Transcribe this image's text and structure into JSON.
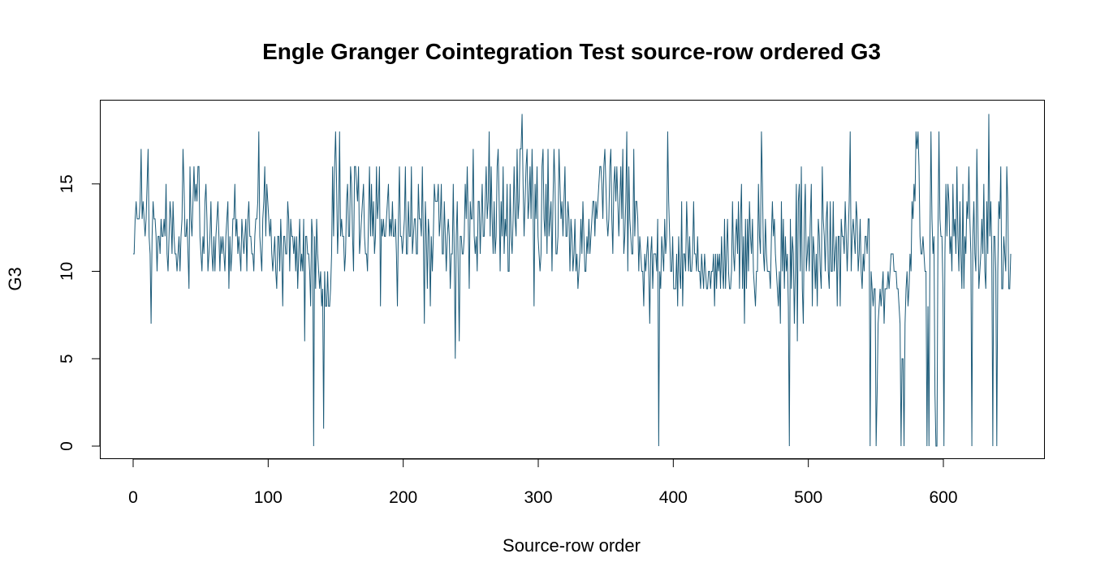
{
  "chart_data": {
    "type": "line",
    "title": "Engle Granger Cointegration Test source-row ordered G3",
    "xlabel": "Source-row order",
    "ylabel": "G3",
    "xlim": [
      0,
      650
    ],
    "ylim": [
      0,
      19
    ],
    "x_ticks": [
      0,
      100,
      200,
      300,
      400,
      500,
      600
    ],
    "y_ticks": [
      0,
      5,
      10,
      15
    ],
    "grid": false,
    "legend": "none",
    "line_color": "#1b5a78",
    "series": [
      {
        "y": [
          11,
          11,
          13,
          14,
          13,
          13,
          13,
          14,
          17,
          13,
          14,
          13,
          12,
          13,
          15,
          17,
          12,
          11,
          7,
          12,
          14,
          13,
          13,
          12,
          10,
          12,
          12,
          11,
          13,
          12,
          12,
          13,
          12,
          15,
          11,
          10,
          12,
          14,
          13,
          11,
          14,
          12,
          11,
          11,
          10,
          11,
          12,
          10,
          12,
          13,
          17,
          15,
          12,
          12,
          13,
          11,
          9,
          16,
          13,
          12,
          14,
          16,
          14,
          15,
          14,
          16,
          16,
          12,
          11,
          10,
          12,
          11,
          14,
          15,
          13,
          10,
          11,
          12,
          14,
          11,
          10,
          12,
          10,
          12,
          13,
          14,
          12,
          10,
          12,
          11,
          12,
          11,
          10,
          12,
          13,
          14,
          9,
          12,
          10,
          11,
          13,
          13,
          15,
          12,
          13,
          11,
          12,
          11,
          10,
          13,
          12,
          11,
          12,
          13,
          10,
          13,
          14,
          12,
          12,
          11,
          11,
          10,
          12,
          13,
          13,
          14,
          18,
          12,
          11,
          10,
          13,
          14,
          16,
          12,
          15,
          14,
          13,
          12,
          13,
          11,
          10,
          11,
          12,
          10,
          9,
          12,
          12,
          10,
          13,
          11,
          8,
          12,
          12,
          11,
          11,
          14,
          13,
          10,
          13,
          12,
          12,
          11,
          12,
          10,
          12,
          9,
          11,
          13,
          10,
          11,
          10,
          13,
          6,
          12,
          12,
          11,
          11,
          10,
          8,
          13,
          12,
          0,
          12,
          9,
          13,
          11,
          10,
          9,
          10,
          8,
          9,
          1,
          10,
          8,
          8,
          10,
          8,
          8,
          9,
          11,
          16,
          12,
          16,
          18,
          15,
          11,
          13,
          18,
          12,
          13,
          12,
          12,
          10,
          11,
          14,
          15,
          12,
          12,
          16,
          15,
          12,
          10,
          16,
          16,
          15,
          14,
          16,
          11,
          12,
          13,
          14,
          15,
          12,
          11,
          11,
          10,
          13,
          16,
          12,
          15,
          12,
          14,
          11,
          12,
          16,
          13,
          14,
          16,
          8,
          13,
          12,
          13,
          12,
          12,
          13,
          14,
          15,
          12,
          13,
          12,
          14,
          12,
          12,
          13,
          11,
          8,
          13,
          16,
          12,
          12,
          11,
          12,
          13,
          16,
          11,
          11,
          14,
          12,
          12,
          16,
          11,
          12,
          13,
          13,
          11,
          11,
          15,
          13,
          13,
          12,
          16,
          12,
          7,
          14,
          12,
          9,
          13,
          12,
          8,
          12,
          10,
          12,
          15,
          14,
          14,
          14,
          15,
          12,
          13,
          15,
          11,
          11,
          14,
          12,
          10,
          12,
          13,
          12,
          9,
          11,
          11,
          15,
          11,
          5,
          12,
          14,
          10,
          6,
          12,
          12,
          11,
          11,
          12,
          15,
          13,
          16,
          13,
          9,
          14,
          13,
          13,
          17,
          12,
          11,
          12,
          10,
          14,
          14,
          11,
          13,
          15,
          12,
          12,
          14,
          16,
          13,
          14,
          18,
          12,
          16,
          13,
          11,
          14,
          11,
          12,
          16,
          17,
          14,
          10,
          14,
          12,
          16,
          11,
          13,
          12,
          15,
          10,
          10,
          15,
          12,
          11,
          13,
          16,
          13,
          12,
          17,
          13,
          14,
          17,
          17,
          19,
          15,
          12,
          14,
          16,
          17,
          13,
          14,
          16,
          13,
          17,
          14,
          8,
          15,
          13,
          16,
          12,
          11,
          10,
          11,
          16,
          17,
          13,
          12,
          15,
          11,
          17,
          12,
          13,
          14,
          10,
          14,
          17,
          15,
          11,
          11,
          12,
          17,
          15,
          13,
          14,
          12,
          14,
          16,
          12,
          12,
          14,
          13,
          10,
          13,
          12,
          10,
          11,
          13,
          10,
          11,
          9,
          10,
          11,
          13,
          11,
          14,
          12,
          10,
          10,
          12,
          11,
          13,
          11,
          12,
          13,
          14,
          14,
          12,
          14,
          13,
          14,
          15,
          16,
          16,
          15,
          13,
          16,
          17,
          15,
          13,
          12,
          13,
          16,
          17,
          13,
          11,
          15,
          16,
          14,
          16,
          14,
          12,
          14,
          16,
          13,
          17,
          11,
          12,
          14,
          18,
          10,
          16,
          13,
          12,
          11,
          11,
          17,
          12,
          14,
          14,
          13,
          10,
          12,
          11,
          10,
          10,
          8,
          11,
          10,
          11,
          12,
          10,
          7,
          11,
          12,
          9,
          11,
          11,
          11,
          10,
          13,
          0,
          10,
          9,
          12,
          11,
          10,
          13,
          11,
          12,
          18,
          14,
          12,
          10,
          10,
          12,
          9,
          9,
          9,
          11,
          8,
          12,
          10,
          9,
          14,
          8,
          11,
          11,
          10,
          14,
          12,
          10,
          12,
          10,
          10,
          11,
          14,
          11,
          11,
          10,
          12,
          10,
          10,
          9,
          11,
          10,
          9,
          11,
          10,
          9,
          9,
          10,
          10,
          9,
          10,
          10,
          11,
          8,
          11,
          9,
          11,
          10,
          11,
          9,
          12,
          10,
          9,
          13,
          9,
          11,
          13,
          10,
          9,
          9,
          10,
          14,
          11,
          10,
          12,
          13,
          11,
          14,
          9,
          13,
          15,
          9,
          12,
          7,
          13,
          9,
          13,
          10,
          14,
          12,
          11,
          13,
          10,
          9,
          8,
          10,
          10,
          15,
          12,
          11,
          18,
          15,
          11,
          10,
          13,
          11,
          10,
          10,
          10,
          9,
          12,
          14,
          12,
          13,
          11,
          10,
          9,
          8,
          10,
          7,
          14,
          10,
          13,
          9,
          12,
          10,
          11,
          8,
          0,
          13,
          9,
          12,
          11,
          7,
          10,
          15,
          6,
          14,
          15,
          10,
          16,
          9,
          7,
          13,
          15,
          10,
          11,
          12,
          10,
          13,
          15,
          8,
          12,
          11,
          9,
          11,
          8,
          13,
          12,
          10,
          9,
          16,
          13,
          12,
          10,
          13,
          14,
          10,
          9,
          14,
          10,
          10,
          14,
          10,
          11,
          12,
          8,
          12,
          12,
          8,
          13,
          12,
          12,
          11,
          14,
          12,
          10,
          12,
          14,
          18,
          10,
          12,
          13,
          12,
          11,
          14,
          13,
          10,
          11,
          13,
          10,
          9,
          11,
          10,
          12,
          12,
          11,
          13,
          13,
          0,
          10,
          9,
          8,
          9,
          9,
          0,
          3,
          7,
          8,
          9,
          8,
          9,
          10,
          7,
          9,
          9,
          9,
          10,
          9,
          10,
          11,
          11,
          11,
          10,
          10,
          10,
          9,
          9,
          8,
          7,
          0,
          5,
          5,
          0,
          7,
          9,
          10,
          8,
          9,
          11,
          10,
          14,
          13,
          15,
          14,
          18,
          17,
          18,
          16,
          12,
          11,
          11,
          12,
          11,
          10,
          10,
          0,
          8,
          0,
          12,
          18,
          13,
          11,
          12,
          3,
          0,
          0,
          12,
          18,
          13,
          12,
          12,
          9,
          0,
          11,
          15,
          12,
          15,
          14,
          11,
          12,
          10,
          15,
          12,
          13,
          11,
          16,
          12,
          10,
          14,
          11,
          9,
          15,
          9,
          12,
          11,
          14,
          13,
          16,
          13,
          11,
          0,
          12,
          14,
          11,
          10,
          17,
          13,
          9,
          10,
          11,
          13,
          11,
          15,
          10,
          9,
          14,
          11,
          19,
          12,
          14,
          11,
          0,
          12,
          12,
          10,
          0,
          10,
          14,
          13,
          16,
          9,
          9,
          12,
          11,
          10,
          16,
          14,
          9,
          9,
          11
        ]
      }
    ]
  }
}
